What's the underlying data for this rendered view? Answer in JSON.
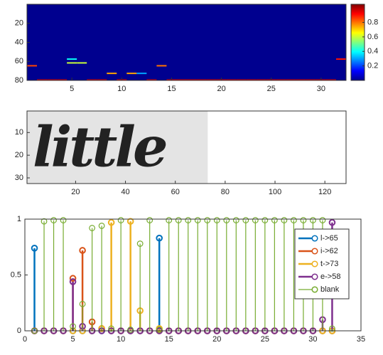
{
  "chart_data": [
    {
      "type": "heatmap",
      "xlim": [
        0.5,
        32.5
      ],
      "ylim": [
        0,
        80
      ],
      "xticks": [
        5,
        10,
        15,
        20,
        25,
        30
      ],
      "yticks": [
        20,
        40,
        60,
        80
      ],
      "clim": [
        0,
        1.05
      ],
      "cticks": [
        0.2,
        0.4,
        0.6,
        0.8
      ],
      "cells": [
        {
          "row": 65,
          "cols": [
            1
          ],
          "value": 0.85
        },
        {
          "row": 58,
          "cols": [
            5
          ],
          "value": 0.4
        },
        {
          "row": 62,
          "cols": [
            5,
            6
          ],
          "value": 0.6
        },
        {
          "row": 73,
          "cols": [
            9
          ],
          "value": 0.75
        },
        {
          "row": 73,
          "cols": [
            11
          ],
          "value": 0.75
        },
        {
          "row": 73,
          "cols": [
            12
          ],
          "value": 0.3
        },
        {
          "row": 65,
          "cols": [
            14
          ],
          "value": 0.8
        },
        {
          "row": 58,
          "cols": [
            32
          ],
          "value": 0.9
        },
        {
          "row": 80,
          "cols": [
            2,
            3,
            4,
            7,
            8,
            10,
            13,
            15,
            16,
            17,
            18,
            19,
            20,
            21,
            22,
            23,
            24,
            25,
            26,
            27,
            28,
            29,
            30,
            31
          ],
          "value": 0.95
        }
      ]
    },
    {
      "type": "image",
      "text": "little",
      "xlim": [
        0.5,
        128.5
      ],
      "ylim": [
        0.5,
        32.5
      ],
      "xticks": [
        20,
        40,
        60,
        80,
        100,
        120
      ],
      "yticks": [
        10,
        20,
        30
      ],
      "image_width": 73
    },
    {
      "type": "stem",
      "xlim": [
        0,
        35
      ],
      "ylim": [
        0,
        1
      ],
      "xticks": [
        0,
        5,
        10,
        15,
        20,
        25,
        30,
        35
      ],
      "yticks": [
        0,
        0.5,
        1
      ],
      "x": [
        1,
        2,
        3,
        4,
        5,
        6,
        7,
        8,
        9,
        10,
        11,
        12,
        13,
        14,
        15,
        16,
        17,
        18,
        19,
        20,
        21,
        22,
        23,
        24,
        25,
        26,
        27,
        28,
        29,
        30,
        31,
        32
      ],
      "series": [
        {
          "name": "l->65",
          "color": "#0072bd",
          "values": [
            0.74,
            0,
            0,
            0,
            0,
            0,
            0,
            0,
            0,
            0,
            0,
            0,
            0,
            0.83,
            0,
            0,
            0,
            0,
            0,
            0,
            0,
            0,
            0,
            0,
            0,
            0,
            0,
            0,
            0,
            0,
            0,
            0
          ]
        },
        {
          "name": "i->62",
          "color": "#d95319",
          "values": [
            0,
            0,
            0,
            0,
            0.47,
            0.72,
            0.08,
            0.02,
            0,
            0,
            0,
            0,
            0,
            0,
            0,
            0,
            0,
            0,
            0,
            0,
            0,
            0,
            0,
            0,
            0,
            0,
            0,
            0,
            0,
            0,
            0,
            0
          ]
        },
        {
          "name": "t->73",
          "color": "#edb120",
          "values": [
            0,
            0,
            0,
            0,
            0,
            0,
            0,
            0.02,
            0.97,
            0,
            0.98,
            0.18,
            0,
            0.02,
            0,
            0,
            0,
            0,
            0,
            0,
            0,
            0,
            0,
            0,
            0,
            0,
            0,
            0,
            0,
            0,
            0,
            0
          ]
        },
        {
          "name": "e->58",
          "color": "#7e2f8e",
          "values": [
            0,
            0,
            0,
            0,
            0.44,
            0.04,
            0,
            0,
            0,
            0,
            0,
            0,
            0,
            0,
            0,
            0,
            0,
            0,
            0,
            0,
            0,
            0,
            0,
            0,
            0,
            0,
            0,
            0,
            0,
            0,
            0.1,
            0.97
          ]
        },
        {
          "name": "blank",
          "color": "#77ac30",
          "values": [
            0,
            0.98,
            0.99,
            0.99,
            0.04,
            0.24,
            0.92,
            0.94,
            0.02,
            0.99,
            0.01,
            0.78,
            0.99,
            0.01,
            0.99,
            0.99,
            0.99,
            0.99,
            0.99,
            0.99,
            0.99,
            0.99,
            0.99,
            0.99,
            0.99,
            0.99,
            0.99,
            0.99,
            0.99,
            0.99,
            0.99,
            0.02
          ]
        }
      ]
    }
  ]
}
